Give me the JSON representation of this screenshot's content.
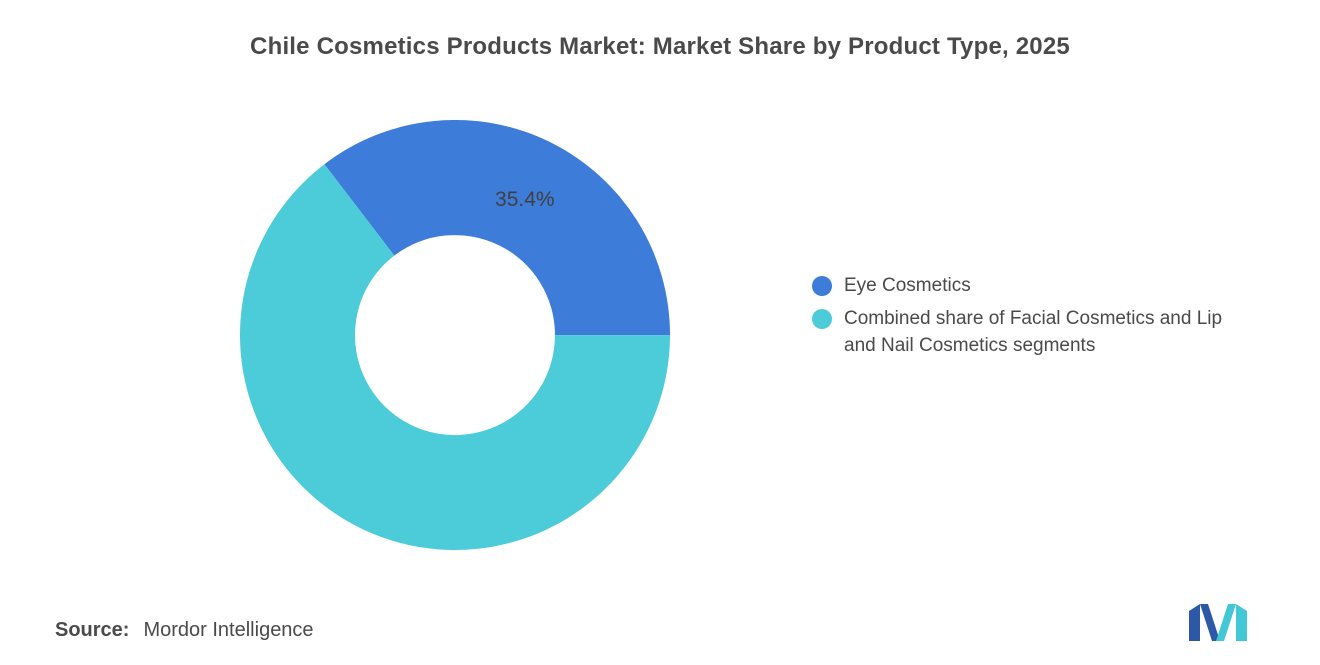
{
  "title": "Chile Cosmetics Products Market: Market Share by Product Type, 2025",
  "chart_data": {
    "type": "pie",
    "subtype": "donut",
    "title": "Chile Cosmetics Products Market: Market Share by Product Type, 2025",
    "segments": [
      {
        "label": "Eye Cosmetics",
        "value": 35.4,
        "color": "#3d7cd9",
        "data_label": "35.4%"
      },
      {
        "label": "Combined share of Facial Cosmetics and Lip and Nail Cosmetics segments",
        "value": 64.6,
        "color": "#4cccd9",
        "data_label": ""
      }
    ],
    "start_angle_deg": -37.4,
    "inner_radius_ratio": 0.465,
    "legend_position": "right",
    "data_label_color": "#404040",
    "background": "#ffffff"
  },
  "source": {
    "label": "Source:",
    "value": "Mordor Intelligence"
  },
  "logo": {
    "name": "mordor-intelligence-logo",
    "blue": "#2c58a6",
    "teal": "#41c8d4"
  }
}
